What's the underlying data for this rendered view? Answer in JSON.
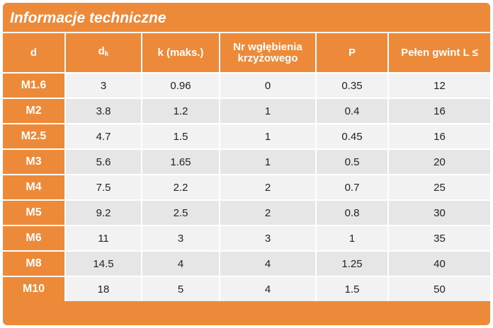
{
  "title": "Informacje techniczne",
  "columns": [
    {
      "main": "d",
      "sub": ""
    },
    {
      "main": "d",
      "sub": "k"
    },
    {
      "main": "k (maks.)",
      "sub": ""
    },
    {
      "main": "Nr wgłębienia krzyżowego",
      "sub": ""
    },
    {
      "main": "P",
      "sub": ""
    },
    {
      "main": "Pełen gwint L ≤",
      "sub": ""
    }
  ],
  "rows": [
    [
      "M1.6",
      "3",
      "0.96",
      "0",
      "0.35",
      "12"
    ],
    [
      "M2",
      "3.8",
      "1.2",
      "1",
      "0.4",
      "16"
    ],
    [
      "M2.5",
      "4.7",
      "1.5",
      "1",
      "0.45",
      "16"
    ],
    [
      "M3",
      "5.6",
      "1.65",
      "1",
      "0.5",
      "20"
    ],
    [
      "M4",
      "7.5",
      "2.2",
      "2",
      "0.7",
      "25"
    ],
    [
      "M5",
      "9.2",
      "2.5",
      "2",
      "0.8",
      "30"
    ],
    [
      "M6",
      "11",
      "3",
      "3",
      "1",
      "35"
    ],
    [
      "M8",
      "14.5",
      "4",
      "4",
      "1.25",
      "40"
    ],
    [
      "M10",
      "18",
      "5",
      "4",
      "1.5",
      "50"
    ]
  ],
  "colors": {
    "accent": "#ec8a3a",
    "row_light": "#f2f2f2",
    "row_dark": "#e6e6e6"
  }
}
